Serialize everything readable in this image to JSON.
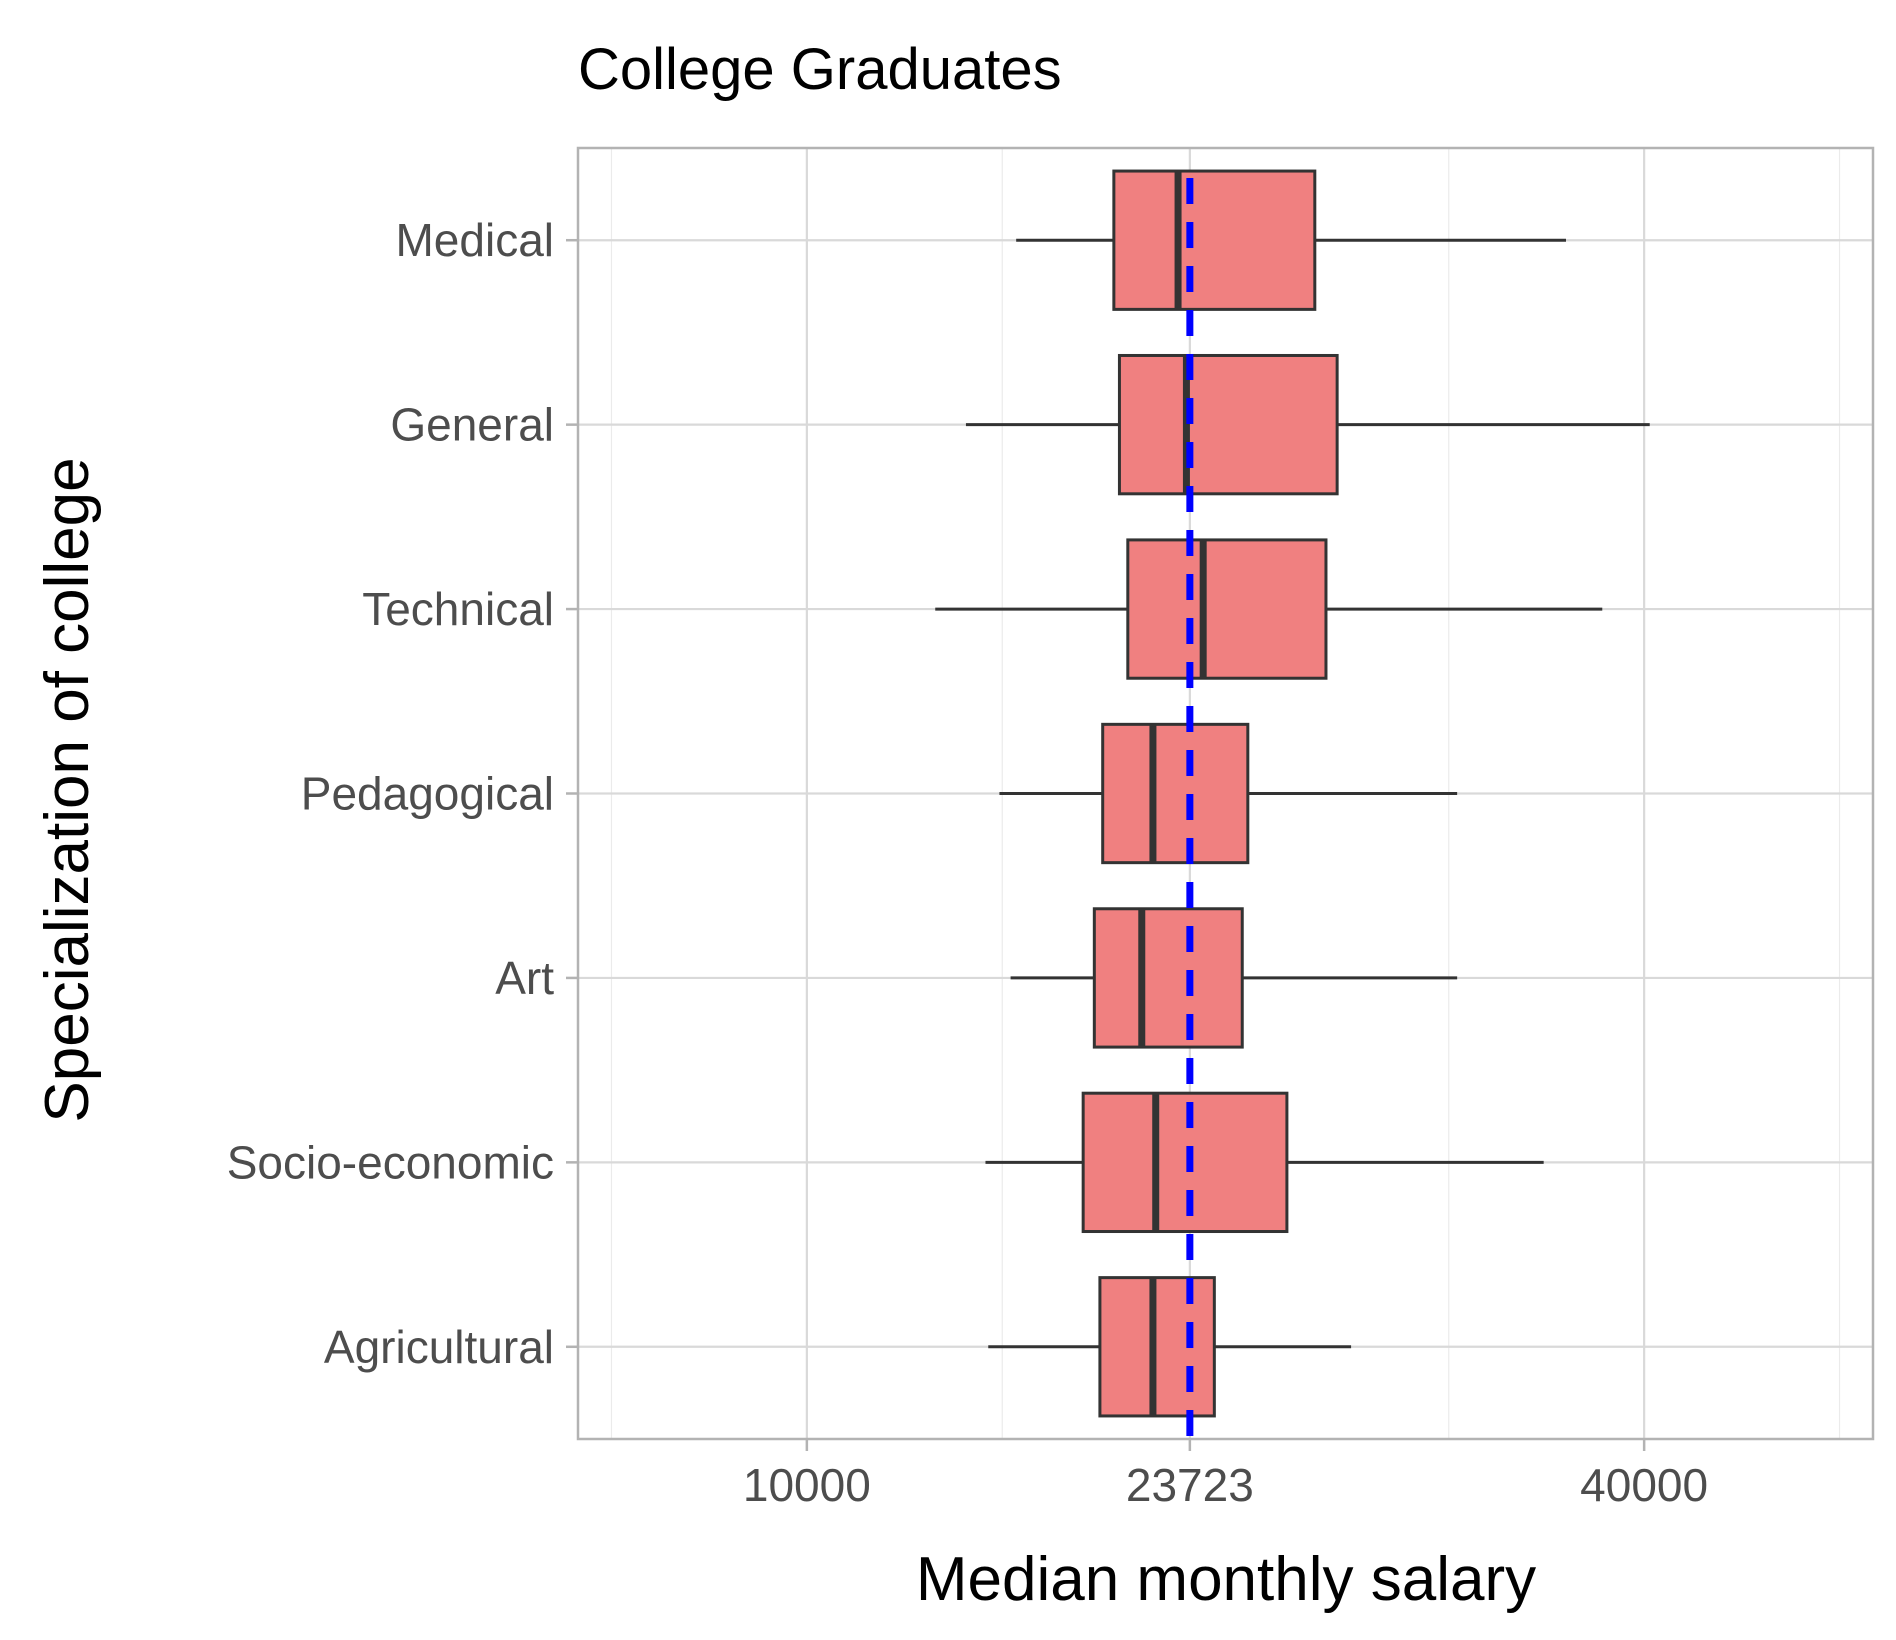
{
  "chart_data": {
    "type": "boxplot",
    "title": "College Graduates",
    "xlabel": "Median monthly salary",
    "ylabel": "Specialization of college",
    "orientation": "horizontal",
    "xlim": [
      1800,
      48200
    ],
    "x_ticks": [
      10000,
      23723,
      40000
    ],
    "x_minor_ticks": [
      3000,
      17000,
      33000,
      47000
    ],
    "categories": [
      "Medical",
      "General",
      "Technical",
      "Pedagogical",
      "Art",
      "Socio-economic",
      "Agricultural"
    ],
    "boxes": [
      {
        "category": "Medical",
        "whisker_low": 17500,
        "q1": 21000,
        "median": 23300,
        "q3": 28200,
        "whisker_high": 37200
      },
      {
        "category": "General",
        "whisker_low": 15700,
        "q1": 21200,
        "median": 23600,
        "q3": 29000,
        "whisker_high": 40200
      },
      {
        "category": "Technical",
        "whisker_low": 14600,
        "q1": 21500,
        "median": 24200,
        "q3": 28600,
        "whisker_high": 38500
      },
      {
        "category": "Pedagogical",
        "whisker_low": 16900,
        "q1": 20600,
        "median": 22400,
        "q3": 25800,
        "whisker_high": 33300
      },
      {
        "category": "Art",
        "whisker_low": 17300,
        "q1": 20300,
        "median": 22000,
        "q3": 25600,
        "whisker_high": 33300
      },
      {
        "category": "Socio-economic",
        "whisker_low": 16400,
        "q1": 19900,
        "median": 22500,
        "q3": 27200,
        "whisker_high": 36400
      },
      {
        "category": "Agricultural",
        "whisker_low": 16500,
        "q1": 20500,
        "median": 22400,
        "q3": 24600,
        "whisker_high": 29500
      }
    ],
    "reference_line": {
      "value": 23723,
      "style": "dashed",
      "color": "#0000ff"
    },
    "box_fill": "#f08080",
    "box_stroke": "#333333",
    "grid": true,
    "legend": "none"
  }
}
